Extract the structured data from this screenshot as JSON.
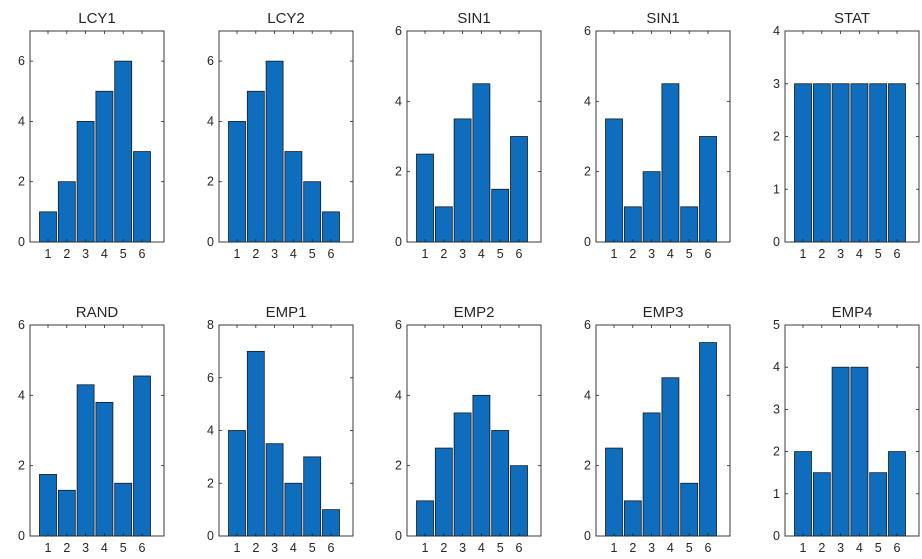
{
  "bar_color": "#0e6ebd",
  "axis_color": "#262626",
  "chart_data": [
    {
      "type": "bar",
      "title": "LCY1",
      "categories": [
        "1",
        "2",
        "3",
        "4",
        "5",
        "6"
      ],
      "values": [
        1,
        2,
        4,
        5,
        6,
        3
      ],
      "ylim": [
        0,
        7
      ],
      "yticks": [
        0,
        2,
        4,
        6
      ],
      "grid": false
    },
    {
      "type": "bar",
      "title": "LCY2",
      "categories": [
        "1",
        "2",
        "3",
        "4",
        "5",
        "6"
      ],
      "values": [
        4,
        5,
        6,
        3,
        2,
        1
      ],
      "ylim": [
        0,
        7
      ],
      "yticks": [
        0,
        2,
        4,
        6
      ],
      "grid": false
    },
    {
      "type": "bar",
      "title": "SIN1",
      "categories": [
        "1",
        "2",
        "3",
        "4",
        "5",
        "6"
      ],
      "values": [
        2.5,
        1,
        3.5,
        4.5,
        1.5,
        3
      ],
      "ylim": [
        0,
        6
      ],
      "yticks": [
        0,
        2,
        4,
        6
      ],
      "grid": false
    },
    {
      "type": "bar",
      "title": "SIN1",
      "categories": [
        "1",
        "2",
        "3",
        "4",
        "5",
        "6"
      ],
      "values": [
        3.5,
        1,
        2,
        4.5,
        1,
        3
      ],
      "ylim": [
        0,
        6
      ],
      "yticks": [
        0,
        2,
        4,
        6
      ],
      "grid": false
    },
    {
      "type": "bar",
      "title": "STAT",
      "categories": [
        "1",
        "2",
        "3",
        "4",
        "5",
        "6"
      ],
      "values": [
        3,
        3,
        3,
        3,
        3,
        3
      ],
      "ylim": [
        0,
        4
      ],
      "yticks": [
        0,
        1,
        2,
        3,
        4
      ],
      "grid": false
    },
    {
      "type": "bar",
      "title": "RAND",
      "categories": [
        "1",
        "2",
        "3",
        "4",
        "5",
        "6"
      ],
      "values": [
        1.75,
        1.3,
        4.3,
        3.8,
        1.5,
        4.55
      ],
      "ylim": [
        0,
        6
      ],
      "yticks": [
        0,
        2,
        4,
        6
      ],
      "grid": false
    },
    {
      "type": "bar",
      "title": "EMP1",
      "categories": [
        "1",
        "2",
        "3",
        "4",
        "5",
        "6"
      ],
      "values": [
        4,
        7,
        3.5,
        2,
        3,
        1
      ],
      "ylim": [
        0,
        8
      ],
      "yticks": [
        0,
        2,
        4,
        6,
        8
      ],
      "grid": false
    },
    {
      "type": "bar",
      "title": "EMP2",
      "categories": [
        "1",
        "2",
        "3",
        "4",
        "5",
        "6"
      ],
      "values": [
        1,
        2.5,
        3.5,
        4,
        3,
        2
      ],
      "ylim": [
        0,
        6
      ],
      "yticks": [
        0,
        2,
        4,
        6
      ],
      "grid": false
    },
    {
      "type": "bar",
      "title": "EMP3",
      "categories": [
        "1",
        "2",
        "3",
        "4",
        "5",
        "6"
      ],
      "values": [
        2.5,
        1,
        3.5,
        4.5,
        1.5,
        5.5
      ],
      "ylim": [
        0,
        6
      ],
      "yticks": [
        0,
        2,
        4,
        6
      ],
      "grid": false
    },
    {
      "type": "bar",
      "title": "EMP4",
      "categories": [
        "1",
        "2",
        "3",
        "4",
        "5",
        "6"
      ],
      "values": [
        2,
        1.5,
        4,
        4,
        1.5,
        2
      ],
      "ylim": [
        0,
        5
      ],
      "yticks": [
        0,
        1,
        2,
        3,
        4,
        5
      ],
      "grid": false
    }
  ]
}
